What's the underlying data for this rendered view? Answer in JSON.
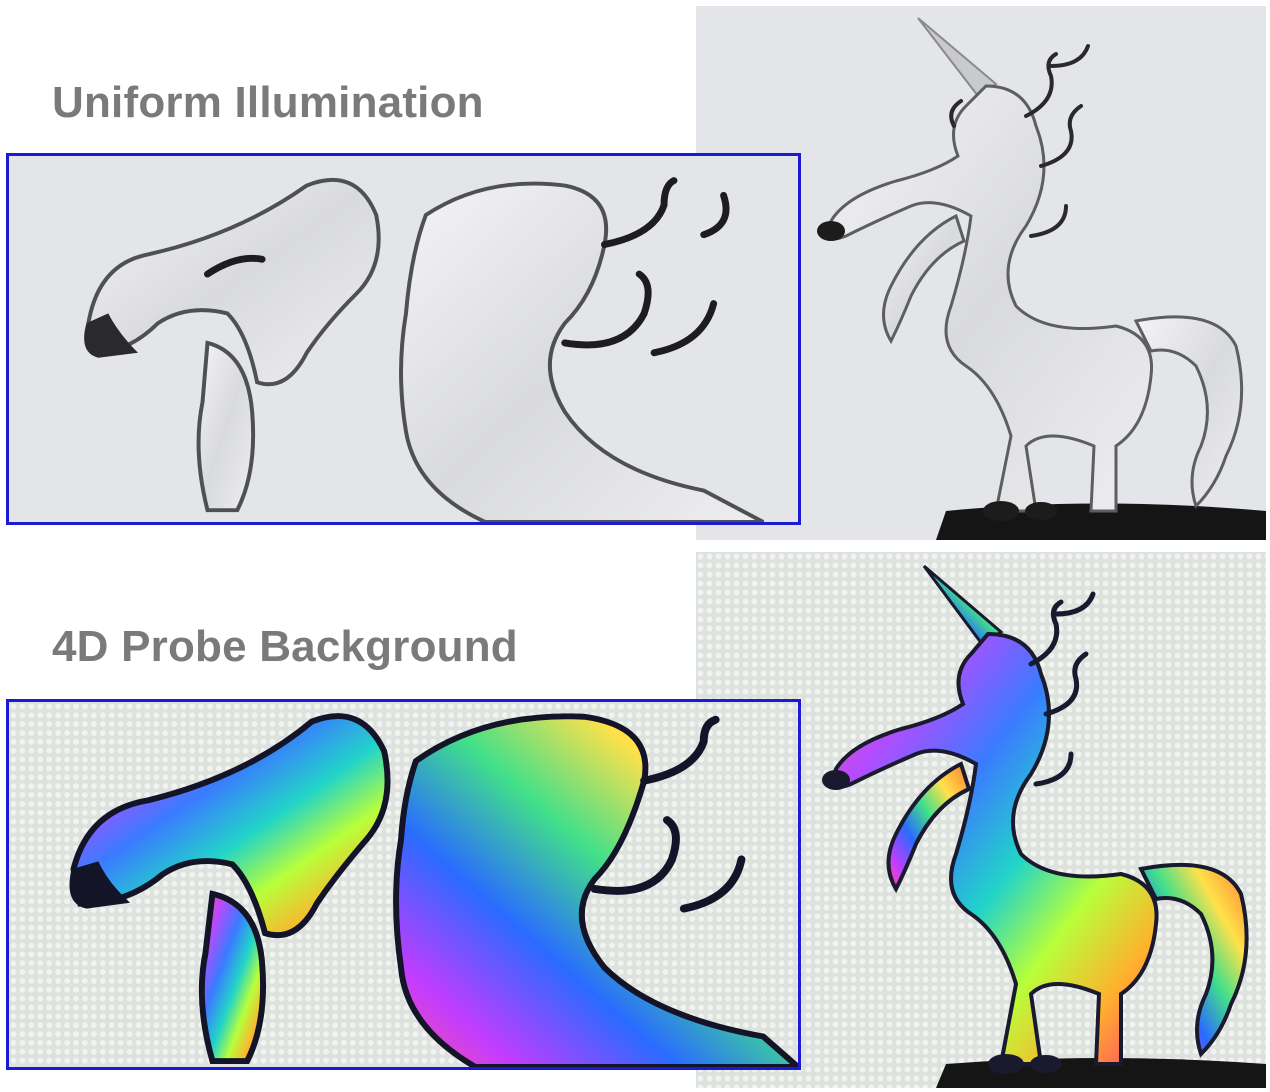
{
  "labels": {
    "uniform": "Uniform Illumination",
    "probe": "4D Probe Background"
  },
  "colors": {
    "label_text": "#7a7a7a",
    "inset_border": "#1b1bd6",
    "uniform_bg": "#e6e7ea",
    "probe_bg": "#dfe3df",
    "glass_dark": "#1a1a2e"
  },
  "panels": {
    "uniform_full": {
      "subject": "glass unicorn figurine",
      "lighting": "uniform-illumination"
    },
    "uniform_inset": {
      "subject": "glass unicorn figurine detail",
      "lighting": "uniform-illumination"
    },
    "probe_full": {
      "subject": "glass unicorn figurine",
      "lighting": "4d-probe-background"
    },
    "probe_inset": {
      "subject": "glass unicorn figurine detail",
      "lighting": "4d-probe-background"
    }
  }
}
